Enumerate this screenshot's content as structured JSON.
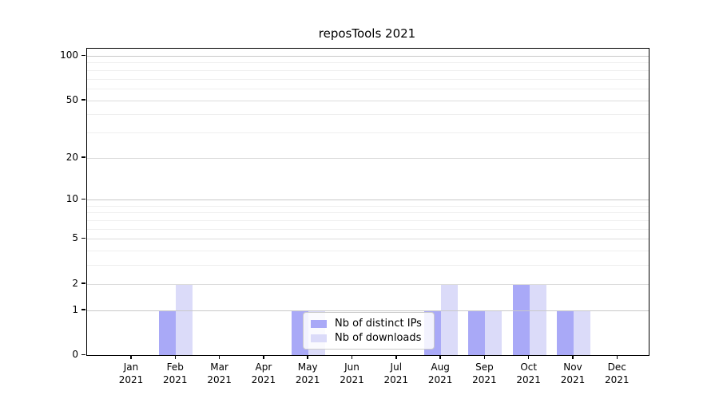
{
  "title": "reposTools 2021",
  "colors": {
    "distinct_ips_bar": "#a9a9f7",
    "downloads_bar": "#dbdbf9",
    "grid_major_decade": "#c8c8c8",
    "grid_major": "#dcdcdc",
    "grid_minor": "#efefef",
    "axis": "#000000",
    "legend_border": "#cbcbcb"
  },
  "chart_data": {
    "type": "bar",
    "title": "reposTools 2021",
    "categories": [
      "Jan 2021",
      "Feb 2021",
      "Mar 2021",
      "Apr 2021",
      "May 2021",
      "Jun 2021",
      "Jul 2021",
      "Aug 2021",
      "Sep 2021",
      "Oct 2021",
      "Nov 2021",
      "Dec 2021"
    ],
    "x_tick_months": [
      "Jan",
      "Feb",
      "Mar",
      "Apr",
      "May",
      "Jun",
      "Jul",
      "Aug",
      "Sep",
      "Oct",
      "Nov",
      "Dec"
    ],
    "x_tick_year": "2021",
    "series": [
      {
        "name": "Nb of distinct IPs",
        "color": "#a9a9f7",
        "values": [
          0,
          1,
          0,
          0,
          1,
          0,
          0,
          1,
          1,
          2,
          1,
          0
        ]
      },
      {
        "name": "Nb of downloads",
        "color": "#dbdbf9",
        "values": [
          0,
          2,
          0,
          0,
          1,
          0,
          0,
          2,
          1,
          2,
          1,
          0
        ]
      }
    ],
    "yscale": "log1p",
    "ylim": [
      0,
      100
    ],
    "yticks": [
      0,
      1,
      2,
      5,
      10,
      20,
      50,
      100
    ],
    "ytick_labels": [
      "0",
      "1",
      "2",
      "5",
      "10",
      "20",
      "50",
      "100"
    ],
    "yticks_minor": [
      3,
      4,
      6,
      7,
      8,
      9,
      30,
      40,
      60,
      70,
      80,
      90
    ],
    "grid": "horizontal",
    "legend": {
      "position": "inside-lower-center",
      "items": [
        "Nb of distinct IPs",
        "Nb of downloads"
      ]
    }
  }
}
